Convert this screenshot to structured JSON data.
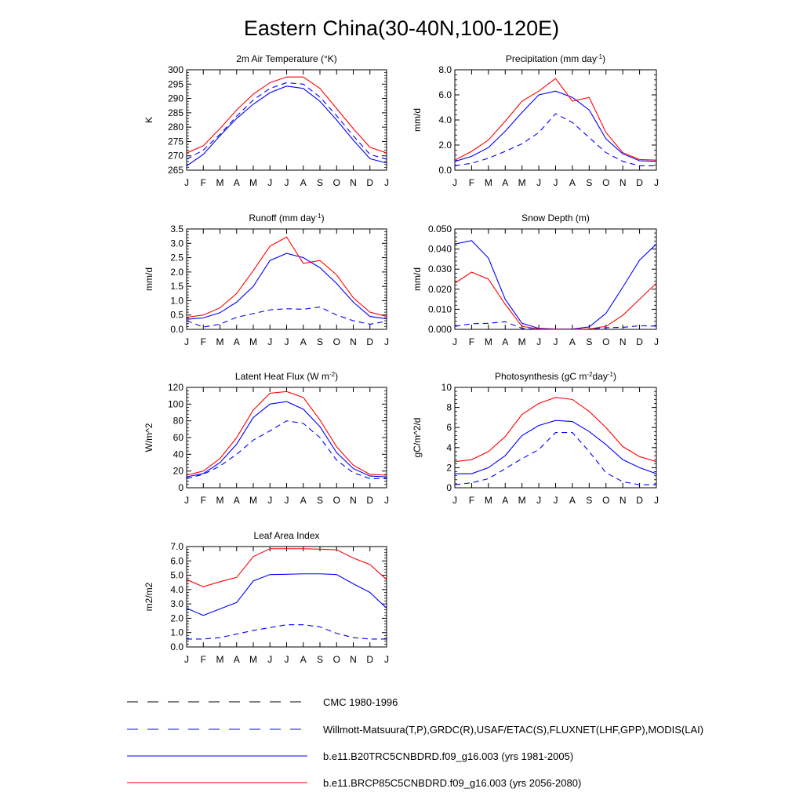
{
  "title": "Eastern China(30-40N,100-120E)",
  "months": [
    "J",
    "F",
    "M",
    "A",
    "M",
    "J",
    "J",
    "A",
    "S",
    "O",
    "N",
    "D",
    "J"
  ],
  "colors": {
    "blue": "#0000ff",
    "red": "#ff0000",
    "black": "#000000"
  },
  "legend": [
    {
      "label": "CMC 1980-1996",
      "color": "#000000",
      "style": "dash"
    },
    {
      "label": "Willmott-Matsuura(T,P),GRDC(R),USAF/ETAC(S),FLUXNET(LHF,GPP),MODIS(LAI)",
      "color": "#0000ff",
      "style": "dash"
    },
    {
      "label": "b.e11.B20TRC5CNBDRD.f09_g16.003 (yrs 1981-2005)",
      "color": "#0000ff",
      "style": "solid"
    },
    {
      "label": "b.e11.BRCP85C5CNBDRD.f09_g16.003 (yrs 2056-2080)",
      "color": "#ff0000",
      "style": "solid"
    }
  ],
  "chart_data": [
    {
      "type": "line",
      "title": "2m Air Temperature (°K)",
      "ylabel": "K",
      "ylim": [
        265,
        300
      ],
      "yticks": [
        "265",
        "270",
        "275",
        "280",
        "285",
        "290",
        "295",
        "300"
      ],
      "series": [
        {
          "name": "Willmott-Matsuura",
          "style": "dash",
          "color": "#0000ff",
          "values": [
            268.8,
            272.0,
            277.5,
            283.8,
            289.5,
            293.5,
            295.5,
            295.0,
            290.5,
            284.0,
            277.0,
            270.5,
            268.8
          ]
        },
        {
          "name": "b.e11.B20TRC5CNBDRD.f09_g16.003 (yrs 1981-2005)",
          "style": "solid",
          "color": "#0000ff",
          "values": [
            266.5,
            270.5,
            277.0,
            283.0,
            288.0,
            292.0,
            294.3,
            293.5,
            289.0,
            282.5,
            275.5,
            269.0,
            267.5
          ]
        },
        {
          "name": "b.e11.BRCP85C5CNBDRD.f09_g16.003 (yrs 2056-2080)",
          "style": "solid",
          "color": "#ff0000",
          "values": [
            271.0,
            273.5,
            279.5,
            286.0,
            291.5,
            295.5,
            297.5,
            297.5,
            293.5,
            286.5,
            279.5,
            273.0,
            271.0
          ]
        }
      ]
    },
    {
      "type": "line",
      "title": "Precipitation (mm day-1)",
      "ylabel": "mm/d",
      "ylim": [
        0,
        8
      ],
      "yticks": [
        "0.0",
        "2.0",
        "4.0",
        "6.0",
        "8.0"
      ],
      "series": [
        {
          "name": "Willmott-Matsuura",
          "style": "dash",
          "color": "#0000ff",
          "values": [
            0.35,
            0.55,
            0.95,
            1.5,
            2.1,
            3.0,
            4.5,
            3.8,
            2.6,
            1.4,
            0.7,
            0.35,
            0.35
          ]
        },
        {
          "name": "b.e11.B20TRC5CNBDRD.f09_g16.003 (yrs 1981-2005)",
          "style": "solid",
          "color": "#0000ff",
          "values": [
            0.7,
            1.1,
            1.8,
            3.1,
            4.6,
            6.0,
            6.3,
            5.8,
            4.8,
            2.5,
            1.3,
            0.75,
            0.7
          ]
        },
        {
          "name": "b.e11.BRCP85C5CNBDRD.f09_g16.003 (yrs 2056-2080)",
          "style": "solid",
          "color": "#ff0000",
          "values": [
            0.8,
            1.5,
            2.4,
            3.9,
            5.5,
            6.3,
            7.3,
            5.5,
            5.8,
            3.0,
            1.4,
            0.85,
            0.8
          ]
        }
      ]
    },
    {
      "type": "line",
      "title": "Runoff (mm day-1)",
      "ylabel": "mm/d",
      "ylim": [
        0,
        3.5
      ],
      "yticks": [
        "0.0",
        "0.5",
        "1.0",
        "1.5",
        "2.0",
        "2.5",
        "3.0",
        "3.5"
      ],
      "series": [
        {
          "name": "GRDC",
          "style": "dash",
          "color": "#0000ff",
          "values": [
            0.3,
            0.08,
            0.18,
            0.42,
            0.55,
            0.68,
            0.72,
            0.7,
            0.78,
            0.5,
            0.3,
            0.18,
            0.28
          ]
        },
        {
          "name": "b.e11.B20TRC5CNBDRD.f09_g16.003 (yrs 1981-2005)",
          "style": "solid",
          "color": "#0000ff",
          "values": [
            0.35,
            0.4,
            0.58,
            0.95,
            1.5,
            2.4,
            2.65,
            2.5,
            2.15,
            1.6,
            0.95,
            0.45,
            0.37
          ]
        },
        {
          "name": "b.e11.BRCP85C5CNBDRD.f09_g16.003 (yrs 2056-2080)",
          "style": "solid",
          "color": "#ff0000",
          "values": [
            0.42,
            0.5,
            0.75,
            1.25,
            2.05,
            2.9,
            3.22,
            2.3,
            2.4,
            1.9,
            1.1,
            0.6,
            0.45
          ]
        }
      ]
    },
    {
      "type": "line",
      "title": "Snow Depth (m)",
      "ylabel": "mm/d",
      "ylim": [
        0,
        0.05
      ],
      "yticks": [
        "0.000",
        "0.010",
        "0.020",
        "0.030",
        "0.040",
        "0.050"
      ],
      "series": [
        {
          "name": "USAF/ETAC",
          "style": "dash",
          "color": "#0000ff",
          "values": [
            0.0015,
            0.0028,
            0.003,
            0.0038,
            0.0005,
            0.0,
            0.0,
            0.0,
            0.0002,
            0.0008,
            0.001,
            0.0018,
            0.0016
          ]
        },
        {
          "name": "b.e11.B20TRC5CNBDRD.f09_g16.003 (yrs 1981-2005)",
          "style": "solid",
          "color": "#0000ff",
          "values": [
            0.0425,
            0.0442,
            0.0355,
            0.015,
            0.003,
            0.0005,
            0.0002,
            0.0002,
            0.0012,
            0.008,
            0.021,
            0.0345,
            0.0425
          ]
        },
        {
          "name": "b.e11.BRCP85C5CNBDRD.f09_g16.003 (yrs 2056-2080)",
          "style": "solid",
          "color": "#ff0000",
          "values": [
            0.023,
            0.0285,
            0.025,
            0.0125,
            0.0015,
            0.0002,
            0.0,
            0.0,
            0.0002,
            0.0015,
            0.007,
            0.015,
            0.023
          ]
        }
      ]
    },
    {
      "type": "line",
      "title": "Latent Heat Flux (W m-2)",
      "ylabel": "W/m^2",
      "ylim": [
        0,
        120
      ],
      "yticks": [
        "0",
        "20",
        "40",
        "60",
        "80",
        "100",
        "120"
      ],
      "series": [
        {
          "name": "FLUXNET",
          "style": "dash",
          "color": "#0000ff",
          "values": [
            11,
            16,
            26,
            40,
            57,
            68,
            80,
            77,
            60,
            33,
            18,
            11,
            11
          ]
        },
        {
          "name": "b.e11.B20TRC5CNBDRD.f09_g16.003 (yrs 1981-2005)",
          "style": "solid",
          "color": "#0000ff",
          "values": [
            13,
            17,
            30,
            52,
            84,
            100,
            103,
            94,
            73,
            42,
            23,
            14,
            13
          ]
        },
        {
          "name": "b.e11.BRCP85C5CNBDRD.f09_g16.003 (yrs 2056-2080)",
          "style": "solid",
          "color": "#ff0000",
          "values": [
            15,
            20,
            35,
            60,
            93,
            113,
            115,
            108,
            81,
            49,
            27,
            16,
            15
          ]
        }
      ]
    },
    {
      "type": "line",
      "title": "Photosynthesis (gC m-2day-1)",
      "ylabel": "gC/m^2/d",
      "ylim": [
        0,
        10
      ],
      "yticks": [
        "0",
        "2",
        "4",
        "6",
        "8",
        "10"
      ],
      "series": [
        {
          "name": "FLUXNET",
          "style": "dash",
          "color": "#0000ff",
          "values": [
            0.3,
            0.5,
            0.9,
            1.9,
            2.9,
            3.8,
            5.5,
            5.5,
            3.6,
            1.5,
            0.6,
            0.3,
            0.3
          ]
        },
        {
          "name": "b.e11.B20TRC5CNBDRD.f09_g16.003 (yrs 1981-2005)",
          "style": "solid",
          "color": "#0000ff",
          "values": [
            1.4,
            1.4,
            2.0,
            3.2,
            5.2,
            6.2,
            6.7,
            6.6,
            5.6,
            4.3,
            2.8,
            2.0,
            1.4
          ]
        },
        {
          "name": "b.e11.BRCP85C5CNBDRD.f09_g16.003 (yrs 2056-2080)",
          "style": "solid",
          "color": "#ff0000",
          "values": [
            2.6,
            2.8,
            3.6,
            5.1,
            7.3,
            8.4,
            9.0,
            8.8,
            7.6,
            6.0,
            4.1,
            3.1,
            2.6
          ]
        }
      ]
    },
    {
      "type": "line",
      "title": "Leaf Area Index",
      "ylabel": "m2/m2",
      "ylim": [
        0,
        7
      ],
      "yticks": [
        "0.0",
        "1.0",
        "2.0",
        "3.0",
        "4.0",
        "5.0",
        "6.0",
        "7.0"
      ],
      "series": [
        {
          "name": "MODIS",
          "style": "dash",
          "color": "#0000ff",
          "values": [
            0.55,
            0.55,
            0.65,
            0.9,
            1.15,
            1.35,
            1.55,
            1.55,
            1.4,
            0.95,
            0.65,
            0.55,
            0.55
          ]
        },
        {
          "name": "b.e11.B20TRC5CNBDRD.f09_g16.003 (yrs 1981-2005)",
          "style": "solid",
          "color": "#0000ff",
          "values": [
            2.7,
            2.2,
            2.65,
            3.1,
            4.6,
            5.05,
            5.07,
            5.1,
            5.1,
            5.05,
            4.4,
            3.8,
            2.7
          ]
        },
        {
          "name": "b.e11.BRCP85C5CNBDRD.f09_g16.003 (yrs 2056-2080)",
          "style": "solid",
          "color": "#ff0000",
          "values": [
            4.7,
            4.2,
            4.55,
            4.85,
            6.3,
            6.85,
            6.85,
            6.85,
            6.82,
            6.78,
            6.2,
            5.75,
            4.7
          ]
        }
      ]
    }
  ]
}
